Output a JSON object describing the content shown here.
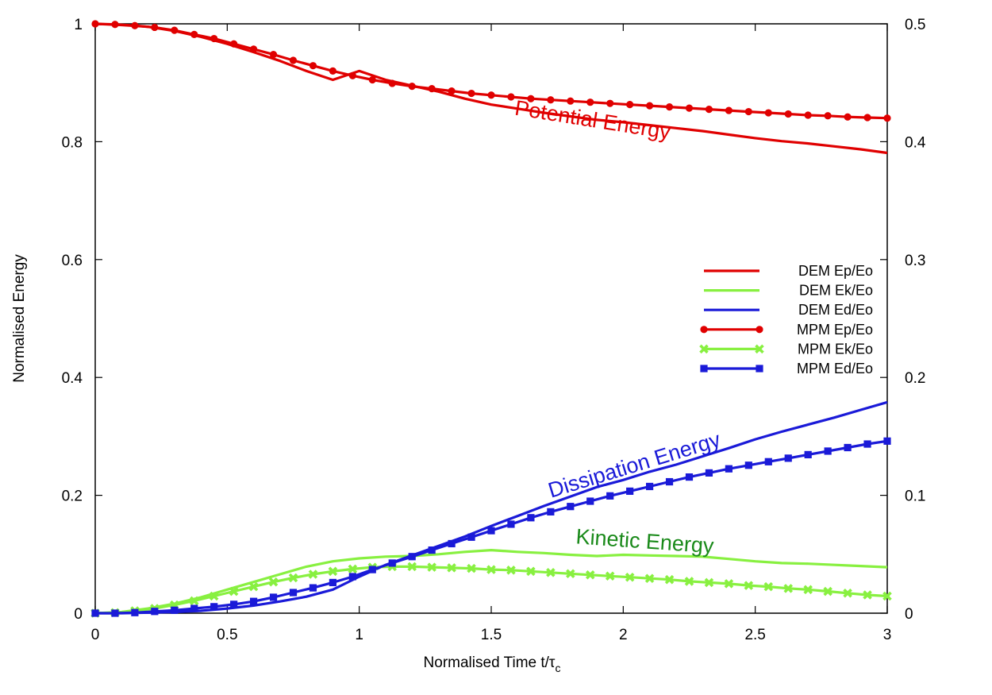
{
  "chart_data": {
    "type": "line",
    "xlabel": "Normalised Time t/τ",
    "xlabel_sub": "c",
    "ylabel": "Normalised Energy",
    "xlim": [
      0,
      3
    ],
    "ylim": [
      0,
      1
    ],
    "y2lim": [
      0,
      0.5
    ],
    "xticks": [
      "0",
      "0.5",
      "1",
      "1.5",
      "2",
      "2.5",
      "3"
    ],
    "yticks": [
      "0",
      "0.2",
      "0.4",
      "0.6",
      "0.8",
      "1"
    ],
    "y2ticks": [
      "0",
      "0.1",
      "0.2",
      "0.3",
      "0.4",
      "0.5"
    ],
    "grid": false,
    "legend_position": "right",
    "series": [
      {
        "name": "DEM Ep/Eo",
        "color": "#e00000",
        "marker": "none",
        "x": [
          0,
          0.1,
          0.2,
          0.3,
          0.4,
          0.5,
          0.6,
          0.7,
          0.8,
          0.9,
          1.0,
          1.1,
          1.2,
          1.3,
          1.4,
          1.5,
          1.6,
          1.7,
          1.8,
          1.9,
          2.0,
          2.1,
          2.2,
          2.3,
          2.4,
          2.5,
          2.6,
          2.7,
          2.8,
          2.9,
          3.0
        ],
        "y": [
          1.0,
          0.998,
          0.995,
          0.988,
          0.978,
          0.966,
          0.952,
          0.937,
          0.92,
          0.905,
          0.92,
          0.905,
          0.895,
          0.885,
          0.873,
          0.863,
          0.856,
          0.849,
          0.843,
          0.837,
          0.833,
          0.828,
          0.823,
          0.818,
          0.812,
          0.806,
          0.801,
          0.797,
          0.792,
          0.787,
          0.781
        ]
      },
      {
        "name": "DEM Ek/Eo",
        "color": "#88f040",
        "marker": "none",
        "x": [
          0,
          0.1,
          0.2,
          0.3,
          0.4,
          0.5,
          0.6,
          0.7,
          0.8,
          0.9,
          1.0,
          1.1,
          1.2,
          1.3,
          1.4,
          1.5,
          1.6,
          1.7,
          1.8,
          1.9,
          2.0,
          2.1,
          2.2,
          2.3,
          2.4,
          2.5,
          2.6,
          2.7,
          2.8,
          2.9,
          3.0
        ],
        "y": [
          0,
          0.002,
          0.008,
          0.016,
          0.027,
          0.04,
          0.053,
          0.066,
          0.079,
          0.088,
          0.093,
          0.096,
          0.097,
          0.1,
          0.104,
          0.107,
          0.104,
          0.102,
          0.099,
          0.097,
          0.099,
          0.098,
          0.097,
          0.096,
          0.092,
          0.088,
          0.085,
          0.084,
          0.082,
          0.08,
          0.078
        ]
      },
      {
        "name": "DEM Ed/Eo",
        "color": "#1a1ad8",
        "marker": "none",
        "x": [
          0,
          0.1,
          0.2,
          0.3,
          0.4,
          0.5,
          0.6,
          0.7,
          0.8,
          0.9,
          1.0,
          1.1,
          1.2,
          1.3,
          1.4,
          1.5,
          1.6,
          1.7,
          1.8,
          1.9,
          2.0,
          2.1,
          2.2,
          2.3,
          2.4,
          2.5,
          2.6,
          2.7,
          2.8,
          2.9,
          3.0
        ],
        "y": [
          0,
          0.0,
          0.001,
          0.002,
          0.004,
          0.008,
          0.013,
          0.02,
          0.028,
          0.04,
          0.062,
          0.082,
          0.098,
          0.114,
          0.13,
          0.148,
          0.165,
          0.182,
          0.198,
          0.214,
          0.226,
          0.24,
          0.252,
          0.266,
          0.28,
          0.295,
          0.308,
          0.32,
          0.332,
          0.345,
          0.358
        ]
      },
      {
        "name": "MPM Ep/Eo",
        "color": "#e00000",
        "marker": "circle",
        "x": [
          0,
          0.075,
          0.15,
          0.225,
          0.3,
          0.375,
          0.45,
          0.525,
          0.6,
          0.675,
          0.75,
          0.825,
          0.9,
          0.975,
          1.05,
          1.125,
          1.2,
          1.275,
          1.35,
          1.425,
          1.5,
          1.575,
          1.65,
          1.725,
          1.8,
          1.875,
          1.95,
          2.025,
          2.1,
          2.175,
          2.25,
          2.325,
          2.4,
          2.475,
          2.55,
          2.625,
          2.7,
          2.775,
          2.85,
          2.925,
          3.0
        ],
        "y": [
          1.0,
          0.999,
          0.997,
          0.994,
          0.989,
          0.982,
          0.975,
          0.966,
          0.957,
          0.948,
          0.938,
          0.929,
          0.92,
          0.912,
          0.905,
          0.899,
          0.894,
          0.89,
          0.886,
          0.882,
          0.879,
          0.876,
          0.873,
          0.871,
          0.869,
          0.867,
          0.865,
          0.863,
          0.861,
          0.859,
          0.857,
          0.855,
          0.853,
          0.851,
          0.849,
          0.847,
          0.845,
          0.844,
          0.842,
          0.841,
          0.84
        ]
      },
      {
        "name": "MPM Ek/Eo",
        "color": "#88f040",
        "marker": "x",
        "x": [
          0,
          0.075,
          0.15,
          0.225,
          0.3,
          0.375,
          0.45,
          0.525,
          0.6,
          0.675,
          0.75,
          0.825,
          0.9,
          0.975,
          1.05,
          1.125,
          1.2,
          1.275,
          1.35,
          1.425,
          1.5,
          1.575,
          1.65,
          1.725,
          1.8,
          1.875,
          1.95,
          2.025,
          2.1,
          2.175,
          2.25,
          2.325,
          2.4,
          2.475,
          2.55,
          2.625,
          2.7,
          2.775,
          2.85,
          2.925,
          3.0
        ],
        "y": [
          0,
          0.001,
          0.004,
          0.008,
          0.014,
          0.021,
          0.029,
          0.037,
          0.045,
          0.053,
          0.06,
          0.066,
          0.071,
          0.075,
          0.078,
          0.079,
          0.079,
          0.078,
          0.077,
          0.076,
          0.074,
          0.073,
          0.071,
          0.069,
          0.067,
          0.065,
          0.063,
          0.061,
          0.059,
          0.057,
          0.054,
          0.052,
          0.05,
          0.047,
          0.045,
          0.042,
          0.04,
          0.037,
          0.034,
          0.031,
          0.029
        ]
      },
      {
        "name": "MPM Ed/Eo",
        "color": "#1a1ad8",
        "marker": "square",
        "x": [
          0,
          0.075,
          0.15,
          0.225,
          0.3,
          0.375,
          0.45,
          0.525,
          0.6,
          0.675,
          0.75,
          0.825,
          0.9,
          0.975,
          1.05,
          1.125,
          1.2,
          1.275,
          1.35,
          1.425,
          1.5,
          1.575,
          1.65,
          1.725,
          1.8,
          1.875,
          1.95,
          2.025,
          2.1,
          2.175,
          2.25,
          2.325,
          2.4,
          2.475,
          2.55,
          2.625,
          2.7,
          2.775,
          2.85,
          2.925,
          3.0
        ],
        "y": [
          0,
          0.0,
          0.001,
          0.003,
          0.005,
          0.008,
          0.011,
          0.015,
          0.02,
          0.027,
          0.035,
          0.043,
          0.052,
          0.062,
          0.074,
          0.085,
          0.096,
          0.107,
          0.118,
          0.129,
          0.14,
          0.151,
          0.162,
          0.172,
          0.181,
          0.19,
          0.199,
          0.207,
          0.215,
          0.223,
          0.231,
          0.238,
          0.245,
          0.251,
          0.257,
          0.263,
          0.269,
          0.275,
          0.281,
          0.287,
          0.292
        ]
      }
    ],
    "annotations": [
      {
        "text": "Potential Energy",
        "color": "#e00000",
        "x": 1.88,
        "y": 0.825,
        "angle": 9
      },
      {
        "text": "Dissipation Energy",
        "color": "#1a1ad8",
        "x": 2.05,
        "y": 0.24,
        "angle": -17
      },
      {
        "text": "Kinetic Energy",
        "color": "#1a8a1a",
        "x": 2.08,
        "y": 0.11,
        "angle": 4
      }
    ]
  }
}
